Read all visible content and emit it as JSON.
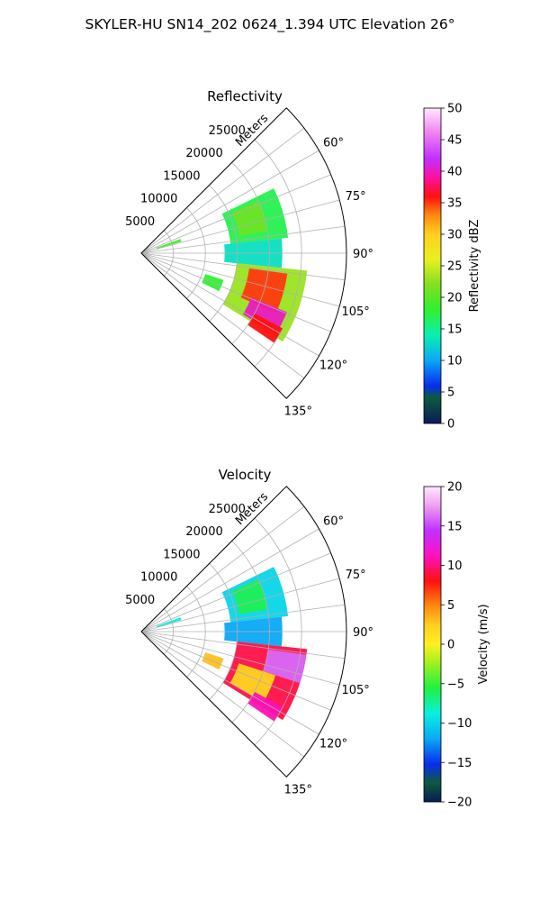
{
  "figure": {
    "title": "SKYLER-HU  SN14_202  0624_1.394 UTC Elevation 26°"
  },
  "chart_data": [
    {
      "type": "heatmap",
      "subtype": "polar-sector (PPI)",
      "title": "Reflectivity",
      "radial_label": "Meters",
      "r_ticks": [
        5000,
        10000,
        15000,
        20000,
        25000
      ],
      "r_tick_labels": [
        "5000",
        "10000",
        "15000",
        "20000",
        "25000"
      ],
      "rlim": [
        0,
        32000
      ],
      "theta_ticks": [
        60,
        75,
        90,
        105,
        120,
        135
      ],
      "theta_tick_labels": [
        "60°",
        "75°",
        "90°",
        "105°",
        "120°",
        "135°"
      ],
      "theta_range_deg": [
        45,
        135
      ],
      "theta_convention": "compass azimuth (0 = north, clockwise)",
      "colorbar": {
        "label": "Reflectivity dBZ",
        "range": [
          0,
          50
        ],
        "ticks": [
          0,
          5,
          10,
          15,
          20,
          25,
          30,
          35,
          40,
          45,
          50
        ],
        "tick_labels": [
          "0",
          "5",
          "10",
          "15",
          "20",
          "25",
          "30",
          "35",
          "40",
          "45",
          "50"
        ]
      },
      "echo_regions": [
        {
          "az": [
            64,
            84
          ],
          "r": [
            14000,
            23000
          ],
          "value": 17
        },
        {
          "az": [
            66,
            80
          ],
          "r": [
            15500,
            20000
          ],
          "value": 21
        },
        {
          "az": [
            84,
            96
          ],
          "r": [
            13000,
            22000
          ],
          "value": 13
        },
        {
          "az": [
            96,
            122
          ],
          "r": [
            15000,
            26000
          ],
          "value": 23
        },
        {
          "az": [
            98,
            114
          ],
          "r": [
            17000,
            23000
          ],
          "value": 35
        },
        {
          "az": [
            112,
            121
          ],
          "r": [
            18500,
            24500
          ],
          "value": 40
        },
        {
          "az": [
            118,
            124
          ],
          "r": [
            20000,
            25000
          ],
          "value": 36
        },
        {
          "az": [
            108,
            116
          ],
          "r": [
            10500,
            13500
          ],
          "value": 18
        },
        {
          "az": [
            70,
            74
          ],
          "r": [
            2500,
            6500
          ],
          "value": 19
        }
      ]
    },
    {
      "type": "heatmap",
      "subtype": "polar-sector (PPI)",
      "title": "Velocity",
      "radial_label": "Meters",
      "r_ticks": [
        5000,
        10000,
        15000,
        20000,
        25000
      ],
      "r_tick_labels": [
        "5000",
        "10000",
        "15000",
        "20000",
        "25000"
      ],
      "rlim": [
        0,
        32000
      ],
      "theta_ticks": [
        60,
        75,
        90,
        105,
        120,
        135
      ],
      "theta_tick_labels": [
        "60°",
        "75°",
        "90°",
        "105°",
        "120°",
        "135°"
      ],
      "theta_range_deg": [
        45,
        135
      ],
      "theta_convention": "compass azimuth (0 = north, clockwise)",
      "colorbar": {
        "label": "Velocity (m/s)",
        "range": [
          -20,
          20
        ],
        "ticks": [
          -20,
          -15,
          -10,
          -5,
          0,
          5,
          10,
          15,
          20
        ],
        "tick_labels": [
          "−20",
          "−15",
          "−10",
          "−5",
          "0",
          "5",
          "10",
          "15",
          "20"
        ]
      },
      "echo_regions": [
        {
          "az": [
            64,
            84
          ],
          "r": [
            14000,
            23000
          ],
          "value": -10
        },
        {
          "az": [
            66,
            80
          ],
          "r": [
            15500,
            20000
          ],
          "value": -6
        },
        {
          "az": [
            84,
            96
          ],
          "r": [
            13000,
            22000
          ],
          "value": -12
        },
        {
          "az": [
            96,
            122
          ],
          "r": [
            15000,
            26000
          ],
          "value": 9
        },
        {
          "az": [
            98,
            108
          ],
          "r": [
            20000,
            26000
          ],
          "value": 16
        },
        {
          "az": [
            108,
            120
          ],
          "r": [
            16000,
            22000
          ],
          "value": 2
        },
        {
          "az": [
            118,
            124
          ],
          "r": [
            20000,
            25000
          ],
          "value": 11
        },
        {
          "az": [
            108,
            116
          ],
          "r": [
            10500,
            13500
          ],
          "value": 3
        },
        {
          "az": [
            70,
            74
          ],
          "r": [
            2500,
            6500
          ],
          "value": -9
        }
      ]
    }
  ]
}
